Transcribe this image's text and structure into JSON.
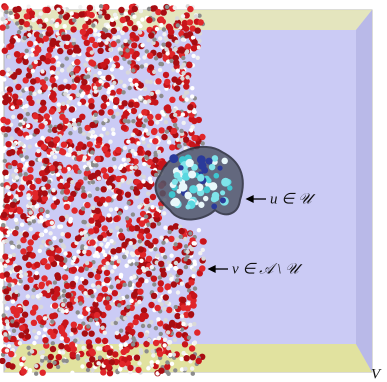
{
  "labels": {
    "solute": "u ∈ 𝒰",
    "solvent": "v ∈ 𝒜 \\ 𝒰",
    "volume": "V"
  }
}
